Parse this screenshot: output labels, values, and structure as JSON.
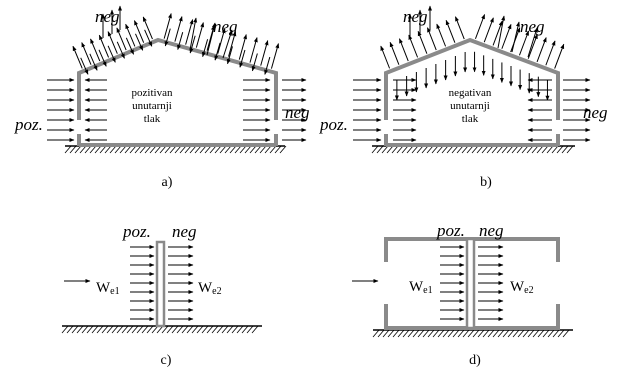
{
  "diagram": {
    "labels": {
      "neg": "neg",
      "poz": "poz.",
      "we1_main": "W",
      "we1_sub": "e1",
      "we2_main": "W",
      "we2_sub": "e2"
    },
    "panel_a": {
      "inner_text": [
        "pozitivan",
        "unutarnji",
        "tlak"
      ],
      "caption": "a)"
    },
    "panel_b": {
      "inner_text": [
        "negativan",
        "unutarnji",
        "tlak"
      ],
      "caption": "b)"
    },
    "panel_c": {
      "caption": "c)"
    },
    "panel_d": {
      "caption": "d)"
    },
    "colors": {
      "structure": "#8a8a8a",
      "ink": "#000000",
      "background": "#ffffff"
    }
  }
}
